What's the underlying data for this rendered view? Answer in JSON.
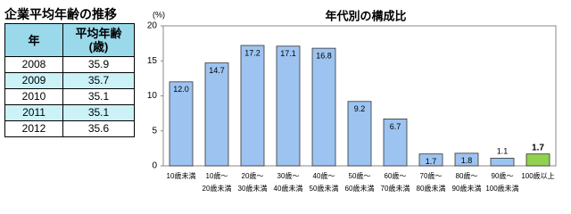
{
  "table": {
    "title": "企業平均年齢の推移",
    "header": [
      "年",
      "平均年齢\n(歳)"
    ],
    "rows": [
      [
        "2008",
        "35.9"
      ],
      [
        "2009",
        "35.7"
      ],
      [
        "2010",
        "35.1"
      ],
      [
        "2011",
        "35.1"
      ],
      [
        "2012",
        "35.6"
      ]
    ]
  },
  "chart_data": {
    "type": "bar",
    "title": "年代別の構成比",
    "y_label": "(%)",
    "categories": [
      "10歳未満",
      "10歳～\n20歳未満",
      "20歳～\n30歳未満",
      "30歳～\n40歳未満",
      "40歳～\n50歳未満",
      "50歳～\n60歳未満",
      "60歳～\n70歳未満",
      "70歳～\n80歳未満",
      "80歳～\n90歳未満",
      "90歳～\n100歳未満",
      "100歳以上"
    ],
    "values": [
      12.0,
      14.7,
      17.2,
      17.1,
      16.8,
      9.2,
      6.7,
      1.7,
      1.8,
      1.1,
      1.7
    ],
    "value_labels": [
      "12.0",
      "14.7",
      "17.2",
      "17.1",
      "16.8",
      "9.2",
      "6.7",
      "1.7",
      "1.8",
      "1.1",
      "1.7"
    ],
    "color": "#9dc3f0",
    "colors": [
      "#9dc3f0",
      "#9dc3f0",
      "#9dc3f0",
      "#9dc3f0",
      "#9dc3f0",
      "#9dc3f0",
      "#9dc3f0",
      "#9dc3f0",
      "#9dc3f0",
      "#9dc3f0",
      "#92d050"
    ],
    "ylim": [
      0,
      20
    ],
    "yticks": [
      0,
      5,
      10,
      15,
      20
    ],
    "grid": false
  }
}
